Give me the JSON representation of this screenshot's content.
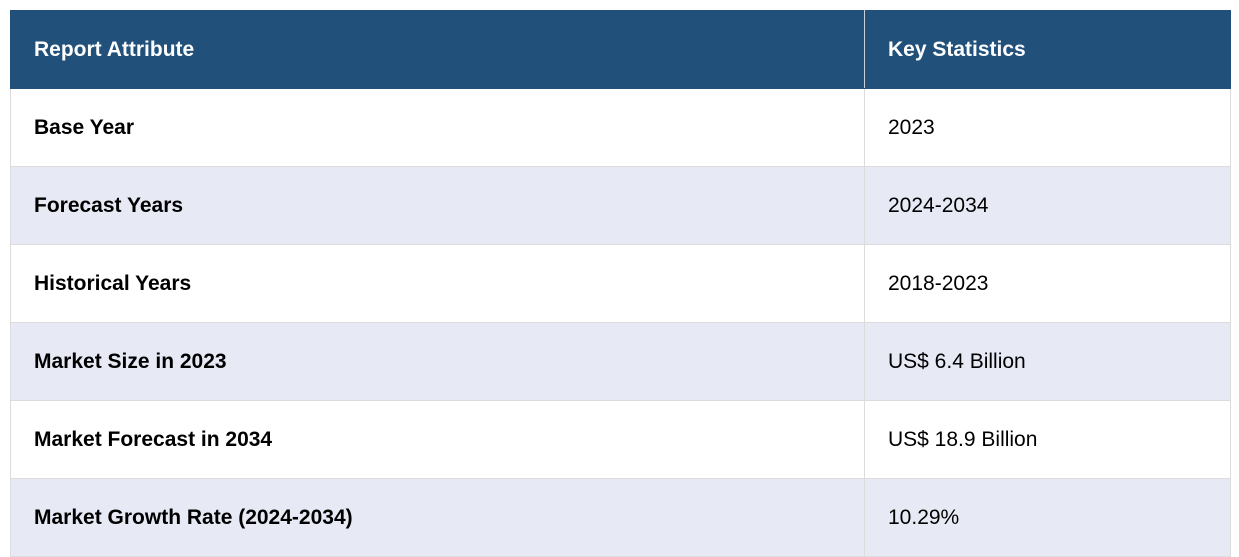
{
  "table": {
    "header": [
      "Report Attribute",
      "Key Statistics"
    ],
    "rows": [
      [
        "Base Year",
        "2023"
      ],
      [
        "Forecast Years",
        "2024-2034"
      ],
      [
        "Historical Years",
        "2018-2023"
      ],
      [
        "Market Size in 2023",
        "US$ 6.4 Billion"
      ],
      [
        "Market Forecast in 2034",
        "US$ 18.9 Billion"
      ],
      [
        "Market Growth Rate (2024-2034)",
        "10.29%"
      ]
    ]
  }
}
